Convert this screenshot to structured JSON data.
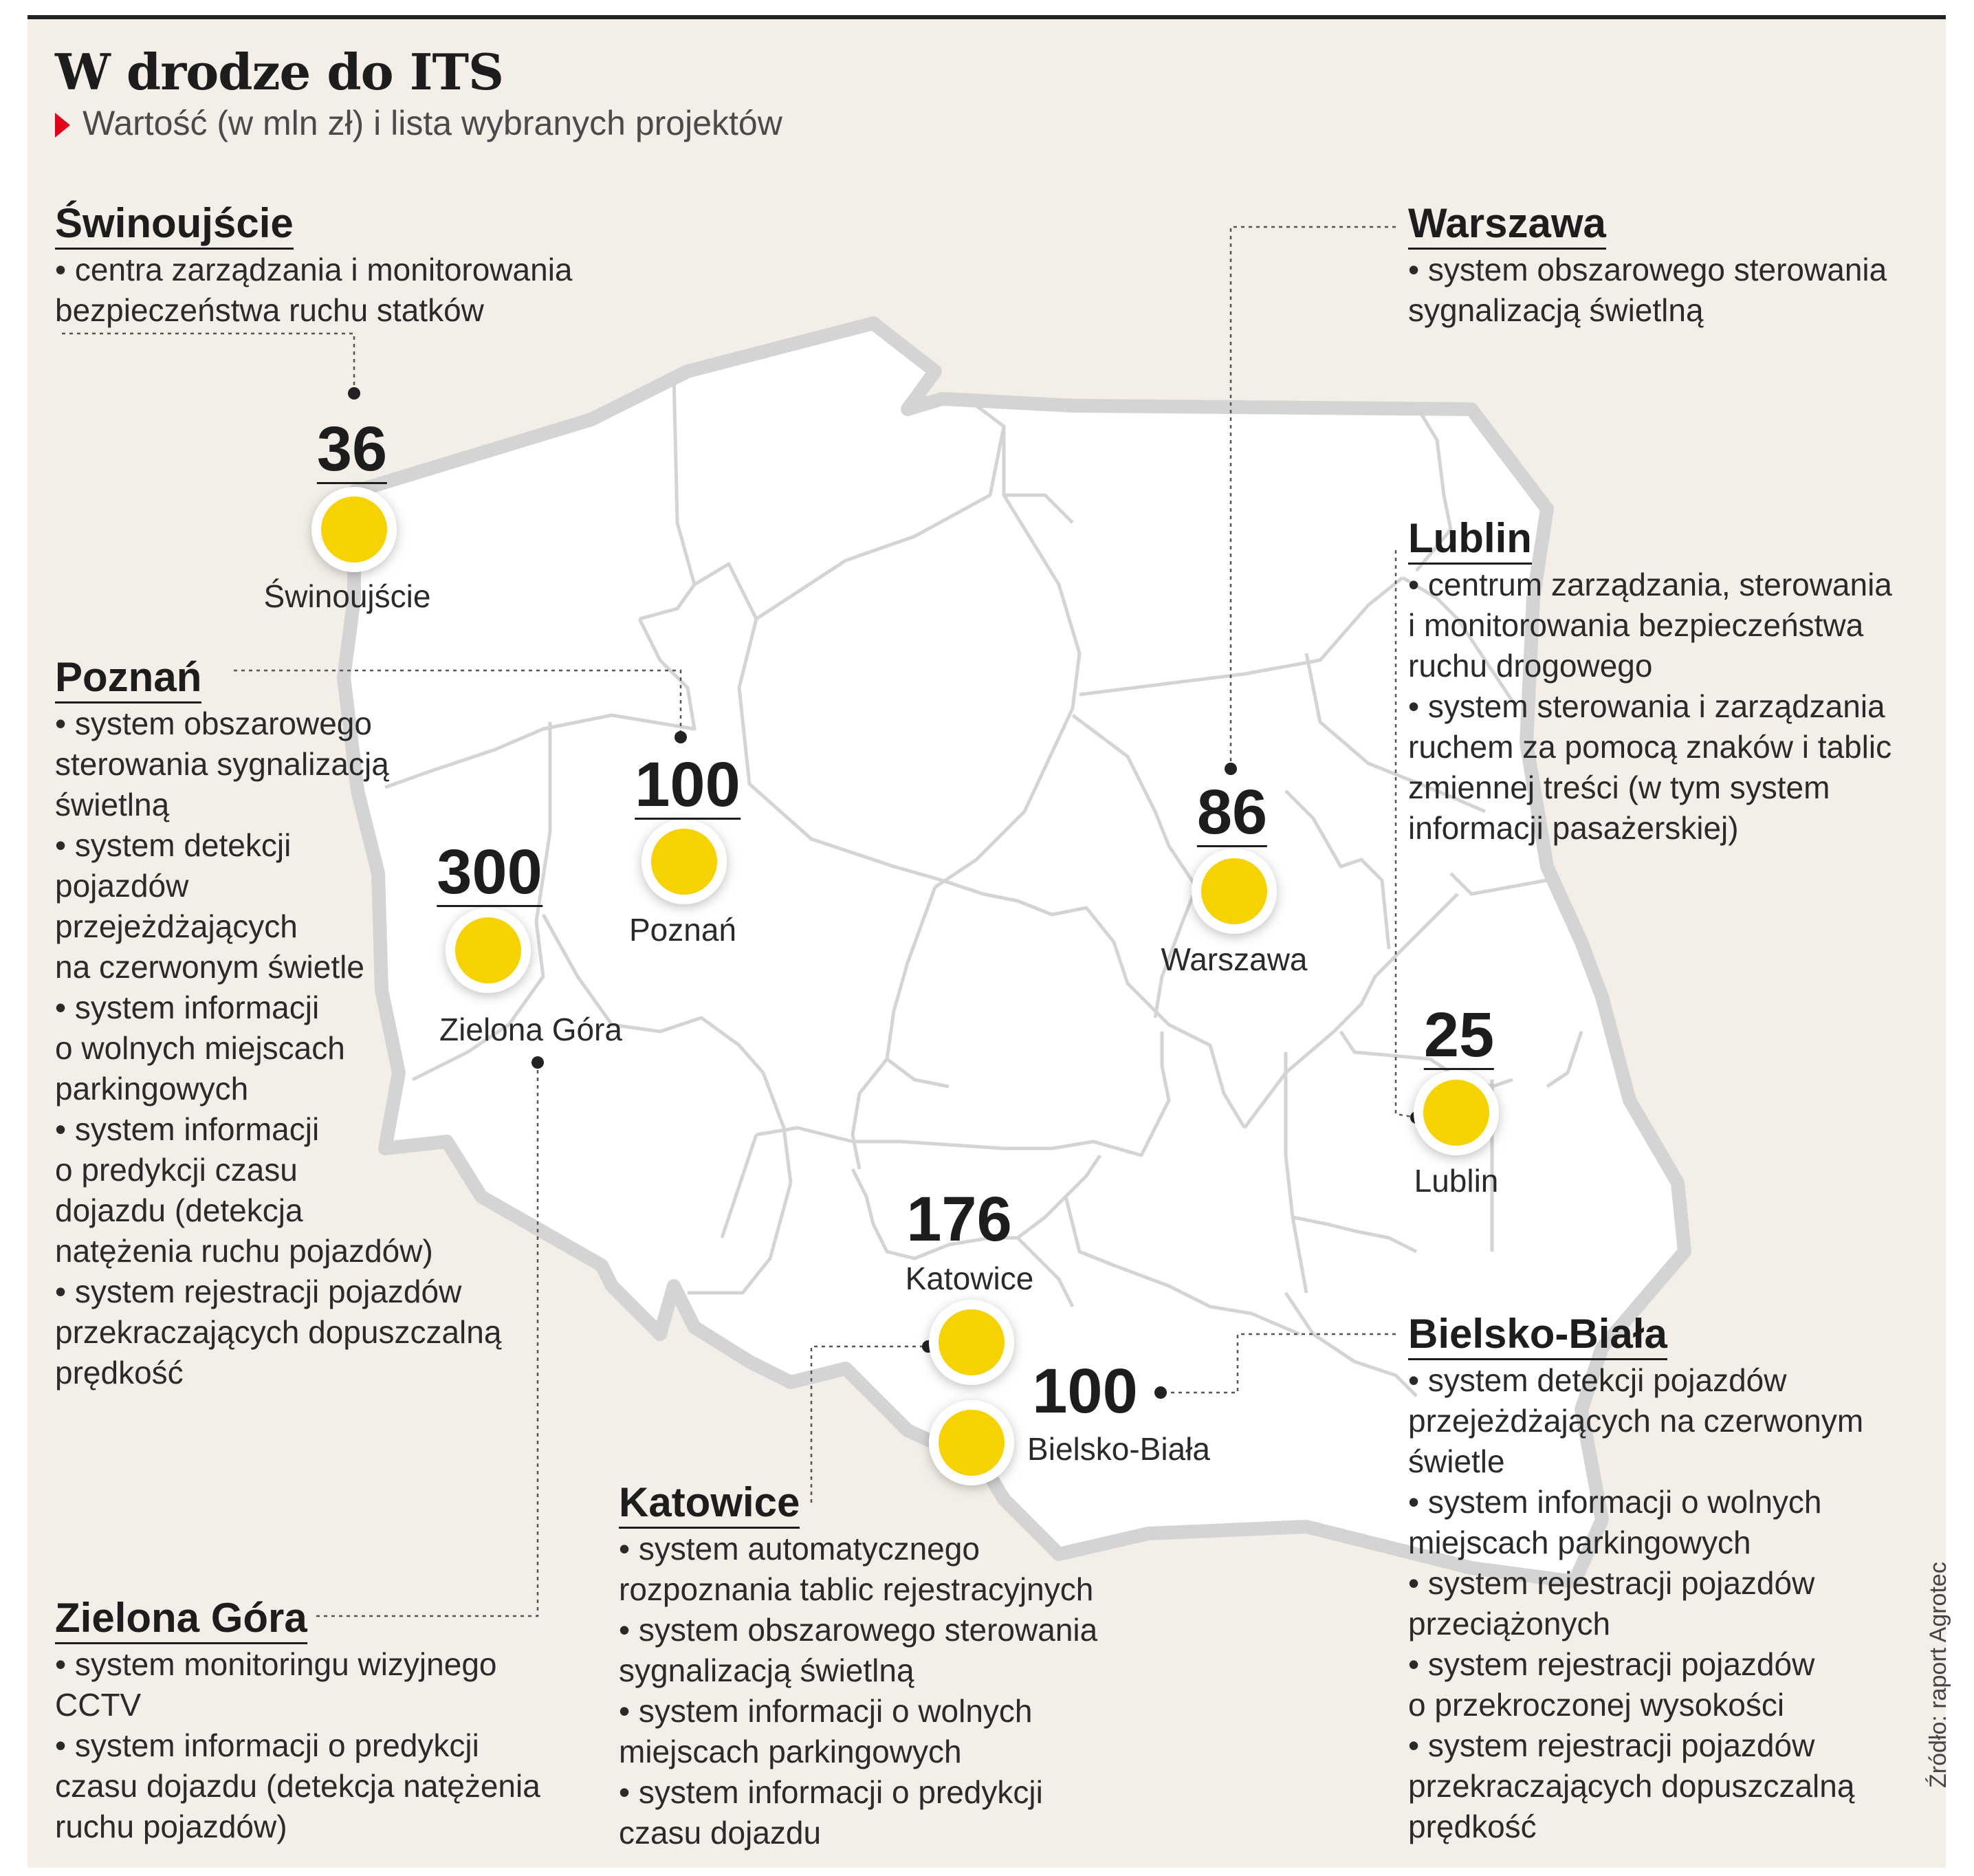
{
  "header": {
    "title": "W drodze do ITS",
    "subtitle": "Wartość (w mln zł) i lista wybranych projektów"
  },
  "colors": {
    "marker_fill": "#f6d200",
    "marker_ring": "#ffffff",
    "accent_triangle": "#e3001b",
    "background": "#f3efe8",
    "map_fill": "#ffffff",
    "border": "#d4d4d4"
  },
  "map_points": [
    {
      "city": "Świnoujście",
      "value": "36"
    },
    {
      "city": "Poznań",
      "value": "100"
    },
    {
      "city": "Zielona Góra",
      "value": "300"
    },
    {
      "city": "Warszawa",
      "value": "86"
    },
    {
      "city": "Lublin",
      "value": "25"
    },
    {
      "city": "Katowice",
      "value": "176"
    },
    {
      "city": "Bielsko-Biała",
      "value": "100"
    }
  ],
  "blocks": {
    "swinoujscie": {
      "heading": "Świnoujście",
      "items": [
        "centra zarządzania i monitorowania",
        "bezpieczeństwa ruchu statków"
      ]
    },
    "warszawa": {
      "heading": "Warszawa",
      "items": [
        "system obszarowego sterowania",
        "sygnalizacją świetlną"
      ]
    },
    "lublin": {
      "heading": "Lublin",
      "items": [
        "centrum zarządzania, sterowania",
        "i monitorowania bezpieczeństwa",
        "ruchu drogowego",
        "system sterowania i zarządzania",
        "ruchem za pomocą znaków i tablic",
        "zmiennej treści (w tym system",
        "informacji pasażerskiej)"
      ]
    },
    "poznan": {
      "heading": "Poznań",
      "items": [
        "system obszarowego",
        "sterowania sygnalizacją",
        "świetlną",
        "system detekcji",
        "pojazdów",
        "przejeżdżających",
        "na czerwonym świetle",
        "system informacji",
        "o wolnych miejscach",
        "parkingowych",
        "system informacji",
        "o predykcji czasu",
        "dojazdu (detekcja",
        "natężenia ruchu pojazdów)",
        "system rejestracji pojazdów",
        "przekraczających dopuszczalną",
        "prędkość"
      ]
    },
    "zielona_gora": {
      "heading": "Zielona Góra",
      "items": [
        "system monitoringu wizyjnego",
        "CCTV",
        "system informacji o predykcji",
        "czasu dojazdu (detekcja natężenia",
        "ruchu pojazdów)"
      ]
    },
    "katowice": {
      "heading": "Katowice",
      "items": [
        "system automatycznego",
        "rozpoznania tablic rejestracyjnych",
        "system obszarowego sterowania",
        "sygnalizacją świetlną",
        "system informacji o wolnych",
        "miejscach parkingowych",
        "system informacji o predykcji",
        "czasu dojazdu"
      ]
    },
    "bielsko_biala": {
      "heading": "Bielsko-Biała",
      "items": [
        "system detekcji pojazdów",
        "przejeżdżających na czerwonym",
        "świetle",
        "system informacji o wolnych",
        "miejscach parkingowych",
        "system rejestracji pojazdów",
        "przeciążonych",
        "system rejestracji pojazdów",
        "o przekroczonej wysokości",
        "system rejestracji pojazdów",
        "przekraczających dopuszczalną",
        "prędkość"
      ]
    }
  },
  "source": "Źródło: raport Agrotec"
}
